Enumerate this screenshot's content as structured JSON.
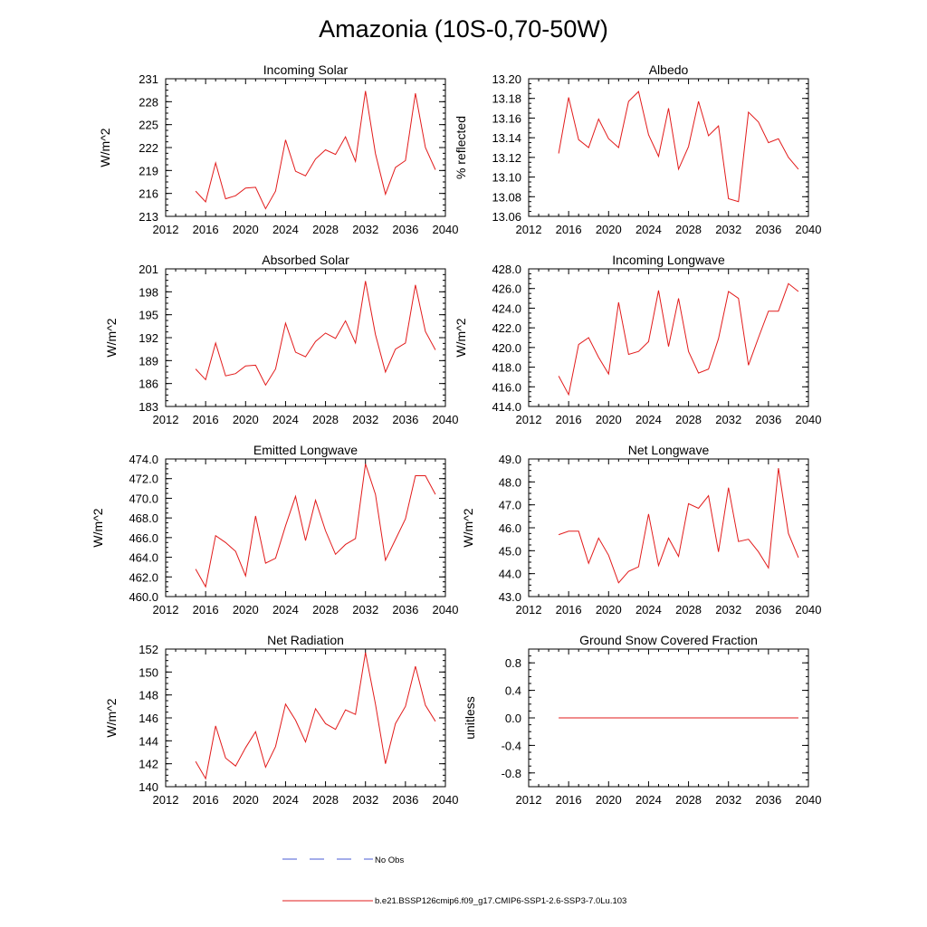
{
  "title": "Amazonia (10S-0,70-50W)",
  "x_ticks": [
    "2012",
    "2016",
    "2020",
    "2024",
    "2028",
    "2032",
    "2036",
    "2040"
  ],
  "chart_data": [
    {
      "type": "line",
      "title": "Incoming Solar",
      "ylabel": "W/m^2",
      "xlim": [
        2012,
        2040
      ],
      "ylim": [
        213,
        231
      ],
      "y_ticks": [
        "213",
        "216",
        "219",
        "222",
        "225",
        "228",
        "231"
      ],
      "x": [
        2015,
        2016,
        2017,
        2018,
        2019,
        2020,
        2021,
        2022,
        2023,
        2024,
        2025,
        2026,
        2027,
        2028,
        2029,
        2030,
        2031,
        2032,
        2033,
        2034,
        2035,
        2036,
        2037,
        2038,
        2039
      ],
      "series": [
        {
          "name": "b.e21.BSSP126cmip6.f09_g17.CMIP6-SSP1-2.6-SSP3-7.0Lu.103",
          "values": [
            216.3,
            214.9,
            220.0,
            215.3,
            215.7,
            216.7,
            216.8,
            214.0,
            216.3,
            223.0,
            218.9,
            218.3,
            220.5,
            221.7,
            221.1,
            223.4,
            220.2,
            229.4,
            221.2,
            215.9,
            219.4,
            220.3,
            229.1,
            222.0,
            219.1
          ]
        }
      ]
    },
    {
      "type": "line",
      "title": "Albedo",
      "ylabel": "% reflected",
      "xlim": [
        2012,
        2040
      ],
      "ylim": [
        13.06,
        13.2
      ],
      "y_ticks": [
        "13.06",
        "13.08",
        "13.10",
        "13.12",
        "13.14",
        "13.16",
        "13.18",
        "13.20"
      ],
      "x": [
        2015,
        2016,
        2017,
        2018,
        2019,
        2020,
        2021,
        2022,
        2023,
        2024,
        2025,
        2026,
        2027,
        2028,
        2029,
        2030,
        2031,
        2032,
        2033,
        2034,
        2035,
        2036,
        2037,
        2038,
        2039
      ],
      "series": [
        {
          "name": "b.e21.BSSP126cmip6.f09_g17.CMIP6-SSP1-2.6-SSP3-7.0Lu.103",
          "values": [
            13.124,
            13.181,
            13.138,
            13.13,
            13.159,
            13.139,
            13.13,
            13.177,
            13.187,
            13.143,
            13.121,
            13.17,
            13.108,
            13.131,
            13.177,
            13.142,
            13.152,
            13.078,
            13.075,
            13.166,
            13.156,
            13.135,
            13.139,
            13.12,
            13.108
          ]
        }
      ]
    },
    {
      "type": "line",
      "title": "Absorbed Solar",
      "ylabel": "W/m^2",
      "xlim": [
        2012,
        2040
      ],
      "ylim": [
        183,
        201
      ],
      "y_ticks": [
        "183",
        "186",
        "189",
        "192",
        "195",
        "198",
        "201"
      ],
      "x": [
        2015,
        2016,
        2017,
        2018,
        2019,
        2020,
        2021,
        2022,
        2023,
        2024,
        2025,
        2026,
        2027,
        2028,
        2029,
        2030,
        2031,
        2032,
        2033,
        2034,
        2035,
        2036,
        2037,
        2038,
        2039
      ],
      "series": [
        {
          "name": "b.e21.BSSP126cmip6.f09_g17.CMIP6-SSP1-2.6-SSP3-7.0Lu.103",
          "values": [
            187.9,
            186.5,
            191.3,
            187.0,
            187.3,
            188.3,
            188.4,
            185.8,
            187.9,
            193.9,
            190.1,
            189.5,
            191.5,
            192.6,
            191.9,
            194.2,
            191.3,
            199.4,
            192.4,
            187.5,
            190.5,
            191.3,
            198.9,
            192.8,
            190.4
          ]
        }
      ]
    },
    {
      "type": "line",
      "title": "Incoming Longwave",
      "ylabel": "W/m^2",
      "xlim": [
        2012,
        2040
      ],
      "ylim": [
        414,
        428
      ],
      "y_ticks": [
        "414.0",
        "416.0",
        "418.0",
        "420.0",
        "422.0",
        "424.0",
        "426.0",
        "428.0"
      ],
      "x": [
        2015,
        2016,
        2017,
        2018,
        2019,
        2020,
        2021,
        2022,
        2023,
        2024,
        2025,
        2026,
        2027,
        2028,
        2029,
        2030,
        2031,
        2032,
        2033,
        2034,
        2035,
        2036,
        2037,
        2038,
        2039
      ],
      "series": [
        {
          "name": "b.e21.BSSP126cmip6.f09_g17.CMIP6-SSP1-2.6-SSP3-7.0Lu.103",
          "values": [
            417.1,
            415.2,
            420.3,
            421.0,
            419.0,
            417.3,
            424.6,
            419.3,
            419.6,
            420.6,
            425.8,
            420.1,
            425.0,
            419.6,
            417.4,
            417.8,
            420.9,
            425.7,
            425.0,
            418.2,
            421.0,
            423.7,
            423.7,
            426.5,
            425.7
          ]
        }
      ]
    },
    {
      "type": "line",
      "title": "Emitted Longwave",
      "ylabel": "W/m^2",
      "xlim": [
        2012,
        2040
      ],
      "ylim": [
        460,
        474
      ],
      "y_ticks": [
        "460.0",
        "462.0",
        "464.0",
        "466.0",
        "468.0",
        "470.0",
        "472.0",
        "474.0"
      ],
      "x": [
        2015,
        2016,
        2017,
        2018,
        2019,
        2020,
        2021,
        2022,
        2023,
        2024,
        2025,
        2026,
        2027,
        2028,
        2029,
        2030,
        2031,
        2032,
        2033,
        2034,
        2035,
        2036,
        2037,
        2038,
        2039
      ],
      "series": [
        {
          "name": "b.e21.BSSP126cmip6.f09_g17.CMIP6-SSP1-2.6-SSP3-7.0Lu.103",
          "values": [
            462.8,
            461.0,
            466.2,
            465.5,
            464.6,
            462.1,
            468.2,
            463.4,
            463.9,
            467.2,
            470.2,
            465.7,
            469.8,
            466.7,
            464.3,
            465.3,
            465.9,
            473.5,
            470.4,
            463.7,
            465.8,
            467.9,
            472.3,
            472.3,
            470.4
          ]
        }
      ]
    },
    {
      "type": "line",
      "title": "Net Longwave",
      "ylabel": "W/m^2",
      "xlim": [
        2012,
        2040
      ],
      "ylim": [
        43,
        49
      ],
      "y_ticks": [
        "43.0",
        "44.0",
        "45.0",
        "46.0",
        "47.0",
        "48.0",
        "49.0"
      ],
      "x": [
        2015,
        2016,
        2017,
        2018,
        2019,
        2020,
        2021,
        2022,
        2023,
        2024,
        2025,
        2026,
        2027,
        2028,
        2029,
        2030,
        2031,
        2032,
        2033,
        2034,
        2035,
        2036,
        2037,
        2038,
        2039
      ],
      "series": [
        {
          "name": "b.e21.BSSP126cmip6.f09_g17.CMIP6-SSP1-2.6-SSP3-7.0Lu.103",
          "values": [
            45.7,
            45.85,
            45.85,
            44.45,
            45.55,
            44.8,
            43.6,
            44.1,
            44.3,
            46.6,
            44.35,
            45.55,
            44.75,
            47.05,
            46.85,
            47.4,
            44.95,
            47.75,
            45.4,
            45.5,
            44.95,
            44.25,
            48.6,
            45.75,
            44.7
          ]
        }
      ]
    },
    {
      "type": "line",
      "title": "Net Radiation",
      "ylabel": "W/m^2",
      "xlim": [
        2012,
        2040
      ],
      "ylim": [
        140,
        152
      ],
      "y_ticks": [
        "140",
        "142",
        "144",
        "146",
        "148",
        "150",
        "152"
      ],
      "x": [
        2015,
        2016,
        2017,
        2018,
        2019,
        2020,
        2021,
        2022,
        2023,
        2024,
        2025,
        2026,
        2027,
        2028,
        2029,
        2030,
        2031,
        2032,
        2033,
        2034,
        2035,
        2036,
        2037,
        2038,
        2039
      ],
      "series": [
        {
          "name": "b.e21.BSSP126cmip6.f09_g17.CMIP6-SSP1-2.6-SSP3-7.0Lu.103",
          "values": [
            142.2,
            140.7,
            145.3,
            142.5,
            141.8,
            143.4,
            144.8,
            141.7,
            143.5,
            147.2,
            145.8,
            143.9,
            146.8,
            145.5,
            145.0,
            146.7,
            146.3,
            151.7,
            147.2,
            142.0,
            145.5,
            147.0,
            150.5,
            147.1,
            145.7
          ]
        }
      ]
    },
    {
      "type": "line",
      "title": "Ground Snow Covered Fraction",
      "ylabel": "unitless",
      "xlim": [
        2012,
        2040
      ],
      "ylim": [
        -1.0,
        1.0
      ],
      "y_ticks": [
        "-0.8",
        "-0.4",
        "0.0",
        "0.4",
        "0.8"
      ],
      "y_tick_values": [
        -0.8,
        -0.4,
        0.0,
        0.4,
        0.8
      ],
      "x": [
        2015,
        2016,
        2017,
        2018,
        2019,
        2020,
        2021,
        2022,
        2023,
        2024,
        2025,
        2026,
        2027,
        2028,
        2029,
        2030,
        2031,
        2032,
        2033,
        2034,
        2035,
        2036,
        2037,
        2038,
        2039
      ],
      "series": [
        {
          "name": "b.e21.BSSP126cmip6.f09_g17.CMIP6-SSP1-2.6-SSP3-7.0Lu.103",
          "values": [
            0,
            0,
            0,
            0,
            0,
            0,
            0,
            0,
            0,
            0,
            0,
            0,
            0,
            0,
            0,
            0,
            0,
            0,
            0,
            0,
            0,
            0,
            0,
            0,
            0
          ]
        }
      ]
    }
  ],
  "legend": [
    {
      "label": "No Obs",
      "color": "#4a5bd4",
      "style": "dashed"
    },
    {
      "label": "b.e21.BSSP126cmip6.f09_g17.CMIP6-SSP1-2.6-SSP3-7.0Lu.103",
      "color": "#e21b1b",
      "style": "solid"
    }
  ],
  "colors": {
    "series": "#e21b1b",
    "axis": "#000000"
  }
}
